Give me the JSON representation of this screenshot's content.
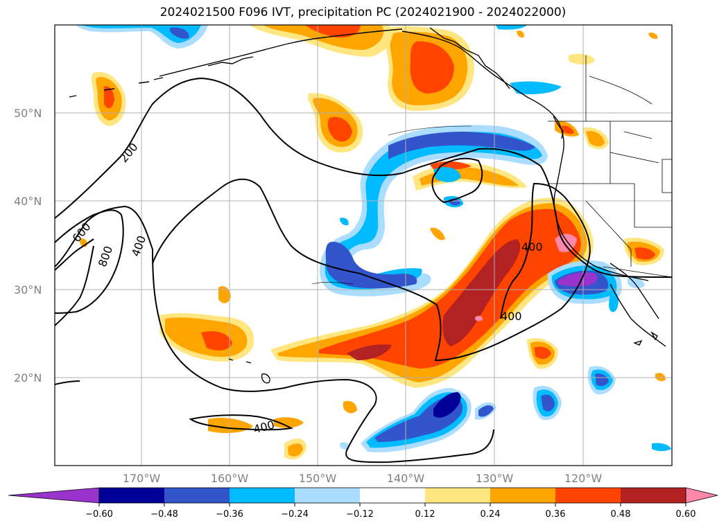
{
  "title": "2024021500 F096 IVT, precipitation PC (2024021900 - 2024022000)",
  "lat_labels": [
    "50°N",
    "40°N",
    "30°N",
    "20°N"
  ],
  "lon_labels": [
    "170°W",
    "160°W",
    "150°W",
    "140°W",
    "130°W",
    "120°W"
  ],
  "contour_labels": [
    "200",
    "600",
    "800",
    "400",
    "400",
    "400",
    "400"
  ],
  "colorbar": {
    "ticks": [
      "−0.60",
      "−0.48",
      "−0.36",
      "−0.24",
      "−0.12",
      "0.12",
      "0.24",
      "0.36",
      "0.48",
      "0.60"
    ],
    "colors": [
      "#9933cc",
      "#000099",
      "#3355cc",
      "#00bbff",
      "#aaddff",
      "#ffffff",
      "#ffe680",
      "#ffa500",
      "#ff4400",
      "#b22222",
      "#ff88aa"
    ]
  },
  "colors": {
    "neg_strong": "#000099",
    "neg_mid": "#3355cc",
    "neg_light": "#00bbff",
    "neg_pale": "#aaddff",
    "pos_pale": "#ffe680",
    "pos_mid": "#ffa500",
    "pos_strong": "#ff4400",
    "pos_dark": "#b22222",
    "pos_max": "#ff88aa",
    "purple": "#9933cc"
  }
}
